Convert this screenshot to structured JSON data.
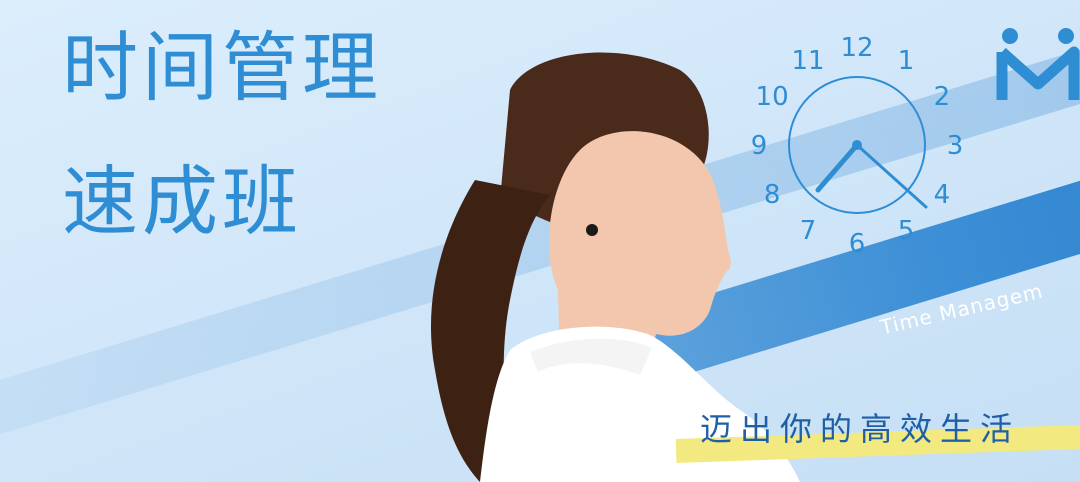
{
  "banner": {
    "title_line1": "时间管理",
    "title_line2": "速成班",
    "tagline_en": "Time Managem",
    "tagline_cn": "迈出你的高效生活"
  },
  "clock": {
    "numbers": [
      "12",
      "1",
      "2",
      "3",
      "4",
      "5",
      "6",
      "7",
      "8",
      "9",
      "10",
      "11"
    ],
    "hour_hand": "about 7:25 (hands point toward 4 and 8)"
  },
  "logo": {
    "icon": "brand-logo-icon"
  },
  "colors": {
    "title_blue": "#2f8dd4",
    "band_blue": "#3d8fd6",
    "background": "#d4e8f9",
    "highlight_yellow": "#f2e981",
    "tagline_cn_blue": "#1f5fa6"
  }
}
